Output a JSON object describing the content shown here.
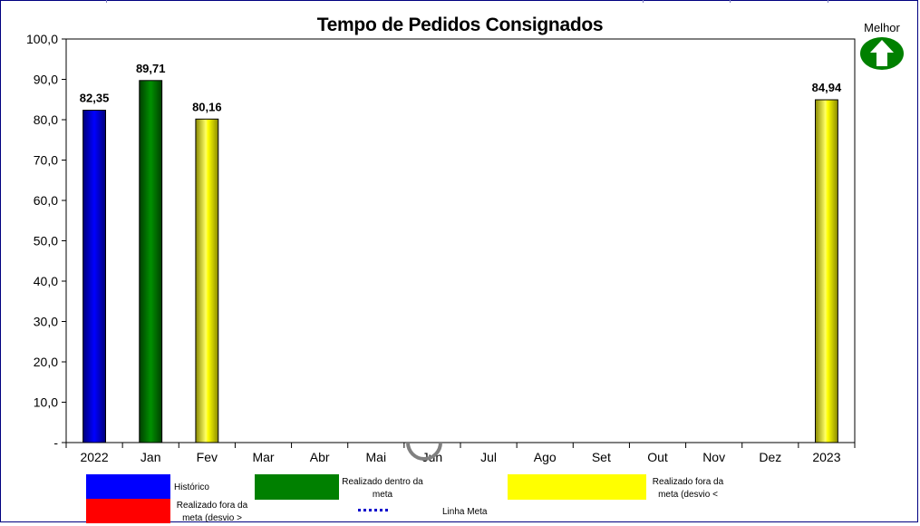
{
  "chart_data": {
    "type": "bar",
    "title": "Tempo de Pedidos Consignados",
    "categories": [
      "2022",
      "Jan",
      "Fev",
      "Mar",
      "Abr",
      "Mai",
      "Jun",
      "Jul",
      "Ago",
      "Set",
      "Out",
      "Nov",
      "Dez",
      "2023"
    ],
    "values": [
      82.35,
      89.71,
      80.16,
      null,
      null,
      null,
      null,
      null,
      null,
      null,
      null,
      null,
      null,
      84.94
    ],
    "value_labels": [
      "82,35",
      "89,71",
      "80,16",
      "",
      "",
      "",
      "",
      "",
      "",
      "",
      "",
      "",
      "",
      "84,94"
    ],
    "bar_colors": [
      "#0000ff",
      "#008000",
      "#ffff00",
      null,
      null,
      null,
      null,
      null,
      null,
      null,
      null,
      null,
      null,
      "#ffff00"
    ],
    "ylim": [
      0,
      100
    ],
    "yticks": [
      "-",
      "10,0",
      "20,0",
      "30,0",
      "40,0",
      "50,0",
      "60,0",
      "70,0",
      "80,0",
      "90,0",
      "100,0"
    ],
    "xlabel": "",
    "ylabel": "",
    "grid": false
  },
  "indicator": {
    "label": "Melhor",
    "icon": "up-arrow-icon",
    "color": "#008000"
  },
  "legend": {
    "historico": "Histórico",
    "realizado_dentro": "Realizado dentro da meta",
    "realizado_fora_desvio_lt": "Realizado fora da meta (desvio <",
    "realizado_fora_desvio_gt": "Realizado fora da meta (desvio >",
    "linha_meta": "Linha Meta",
    "colors": {
      "historico": "#0000ff",
      "dentro": "#008000",
      "fora_lt": "#ffff00",
      "fora_gt": "#ff0000",
      "meta": "#0000cc"
    }
  }
}
